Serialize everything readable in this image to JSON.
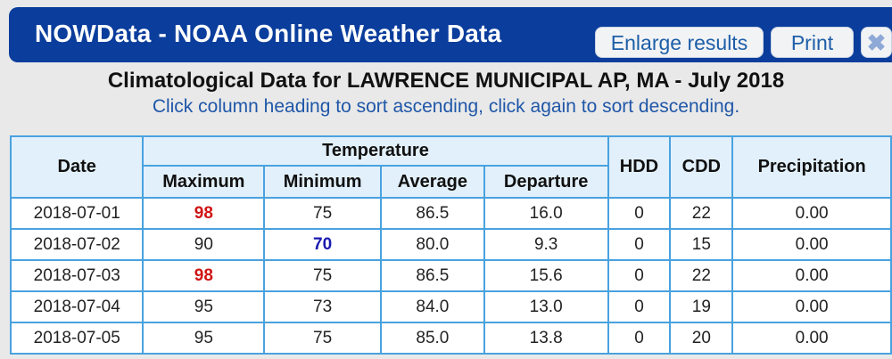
{
  "header": {
    "title": "NOWData - NOAA Online Weather Data",
    "enlarge_label": "Enlarge results",
    "print_label": "Print",
    "close_icon": "close-icon"
  },
  "report": {
    "title": "Climatological Data for LAWRENCE MUNICIPAL AP, MA - July 2018",
    "subtitle": "Click column heading to sort ascending, click again to sort descending."
  },
  "table": {
    "headers": {
      "date": "Date",
      "temperature": "Temperature",
      "maximum": "Maximum",
      "minimum": "Minimum",
      "average": "Average",
      "departure": "Departure",
      "hdd": "HDD",
      "cdd": "CDD",
      "precipitation": "Precipitation"
    },
    "rows": [
      {
        "date": "2018-07-01",
        "max": "98",
        "min": "75",
        "avg": "86.5",
        "dep": "16.0",
        "hdd": "0",
        "cdd": "22",
        "precip": "0.00"
      },
      {
        "date": "2018-07-02",
        "max": "90",
        "min": "70",
        "avg": "80.0",
        "dep": "9.3",
        "hdd": "0",
        "cdd": "15",
        "precip": "0.00"
      },
      {
        "date": "2018-07-03",
        "max": "98",
        "min": "75",
        "avg": "86.5",
        "dep": "15.6",
        "hdd": "0",
        "cdd": "22",
        "precip": "0.00"
      },
      {
        "date": "2018-07-04",
        "max": "95",
        "min": "73",
        "avg": "84.0",
        "dep": "13.0",
        "hdd": "0",
        "cdd": "19",
        "precip": "0.00"
      },
      {
        "date": "2018-07-05",
        "max": "95",
        "min": "75",
        "avg": "85.0",
        "dep": "13.8",
        "hdd": "0",
        "cdd": "20",
        "precip": "0.00"
      }
    ],
    "highlight_colors": {
      "max": "#d01414",
      "min": "#1a1ab0"
    }
  }
}
